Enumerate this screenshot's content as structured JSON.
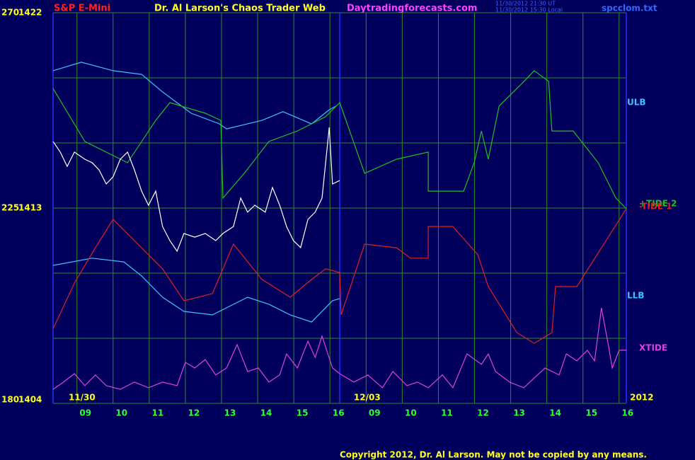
{
  "chart_data": {
    "type": "line",
    "header": {
      "symbol": "S&P E-Mini",
      "title": "Dr. Al Larson's Chaos Trader Web",
      "site": "Daytradingforecasts.com",
      "stamp_ut": "11/30/2012 21:30 UT",
      "stamp_local": "11/30/2012 15:30 Local",
      "file": "spcclom.txt"
    },
    "copyright": "Copyright 2012, Dr. Al Larson. May not be copied by any means.",
    "xlim": [
      -0.66,
      15.2
    ],
    "xticks": [
      {
        "value": 0,
        "label": "09"
      },
      {
        "value": 1,
        "label": "10"
      },
      {
        "value": 2,
        "label": "11"
      },
      {
        "value": 3,
        "label": "12"
      },
      {
        "value": 4,
        "label": "13"
      },
      {
        "value": 5,
        "label": "14"
      },
      {
        "value": 6,
        "label": "15"
      },
      {
        "value": 7,
        "label": "16"
      },
      {
        "value": 8,
        "label": "09"
      },
      {
        "value": 9,
        "label": "10"
      },
      {
        "value": 10,
        "label": "11"
      },
      {
        "value": 11,
        "label": "12"
      },
      {
        "value": 12,
        "label": "13"
      },
      {
        "value": 13,
        "label": "14"
      },
      {
        "value": 14,
        "label": "15"
      },
      {
        "value": 15,
        "label": "16"
      }
    ],
    "date_labels": [
      {
        "value": -0.23,
        "label": "11/30"
      },
      {
        "value": 7.66,
        "label": "12/03"
      },
      {
        "value": 15.3,
        "label": "2012"
      }
    ],
    "day_divider": 7.27,
    "ylim": [
      1404,
      1422
    ],
    "yticks": [
      1404,
      1413,
      1422
    ],
    "y2lim": [
      180,
      270
    ],
    "y2ticks": [
      180,
      225,
      270
    ],
    "ygrid": [
      1404,
      1407,
      1410,
      1413,
      1416,
      1419,
      1422
    ],
    "grid": true,
    "series": [
      {
        "name": "ULB",
        "color": "#40c0ff",
        "x": [
          -0.66,
          0.12,
          1.0,
          1.79,
          2.37,
          3.16,
          3.94,
          4.14,
          5.12,
          5.7,
          6.49,
          6.98,
          7.17
        ],
        "values": [
          1419.33,
          1419.72,
          1419.33,
          1419.16,
          1418.35,
          1417.37,
          1416.88,
          1416.65,
          1417.04,
          1417.44,
          1416.88,
          1417.53,
          1417.7
        ]
      },
      {
        "name": "LLB",
        "color": "#40c0ff",
        "x": [
          -0.66,
          0.42,
          1.3,
          1.79,
          2.37,
          2.96,
          3.75,
          4.72,
          5.31,
          5.9,
          6.49,
          7.07,
          7.27
        ],
        "values": [
          1410.36,
          1410.69,
          1410.52,
          1409.87,
          1408.89,
          1408.24,
          1408.08,
          1408.89,
          1408.57,
          1408.08,
          1407.75,
          1408.73,
          1408.83
        ]
      },
      {
        "name": "+TIDE 2",
        "color": "#20c020",
        "x": [
          -0.66,
          0.22,
          1.4,
          2.18,
          2.57,
          3.55,
          3.98,
          4.04,
          4.63,
          5.31,
          6.1,
          6.88,
          7.27,
          7.96,
          8.84,
          9.72,
          9.72,
          10.7,
          10.99,
          11.19,
          11.38,
          11.68,
          12.37,
          12.65,
          13.05,
          13.14,
          13.73,
          14.42,
          14.91,
          15.2
        ],
        "values": [
          1418.51,
          1416.07,
          1415.09,
          1417.04,
          1417.86,
          1417.37,
          1417.04,
          1413.46,
          1414.6,
          1416.07,
          1416.55,
          1417.21,
          1417.86,
          1414.6,
          1415.25,
          1415.58,
          1413.78,
          1413.78,
          1415.09,
          1416.55,
          1415.25,
          1417.7,
          1418.84,
          1419.33,
          1418.84,
          1416.55,
          1416.55,
          1415.09,
          1413.46,
          1412.97
        ]
      },
      {
        "name": "-TIDE 1",
        "color": "#e02020",
        "x": [
          -0.66,
          -0.07,
          0.51,
          1.0,
          1.59,
          2.37,
          2.96,
          3.75,
          4.33,
          5.12,
          5.9,
          6.49,
          6.88,
          7.27,
          7.31,
          7.96,
          8.84,
          9.23,
          9.72,
          9.72,
          10.4,
          11.09,
          11.38,
          12.17,
          12.65,
          13.14,
          13.24,
          13.83,
          14.51,
          15.2
        ],
        "values": [
          1407.43,
          1409.54,
          1411.17,
          1412.48,
          1411.5,
          1410.2,
          1408.73,
          1409.06,
          1411.34,
          1409.71,
          1408.89,
          1409.71,
          1410.2,
          1410.03,
          1408.08,
          1411.34,
          1411.17,
          1410.69,
          1410.69,
          1412.15,
          1412.15,
          1410.85,
          1409.38,
          1407.26,
          1406.77,
          1407.26,
          1409.38,
          1409.38,
          1411.17,
          1412.97
        ]
      },
      {
        "name": "XTIDE",
        "color": "#e040e0",
        "x": [
          -0.66,
          -0.37,
          -0.07,
          0.22,
          0.51,
          0.81,
          1.2,
          1.59,
          1.98,
          2.37,
          2.77,
          3.0,
          3.26,
          3.55,
          3.84,
          4.14,
          4.43,
          4.72,
          5.02,
          5.31,
          5.61,
          5.8,
          6.1,
          6.39,
          6.59,
          6.78,
          7.07,
          7.27,
          7.66,
          8.05,
          8.45,
          8.74,
          9.13,
          9.42,
          9.72,
          10.11,
          10.4,
          10.79,
          11.19,
          11.38,
          11.58,
          11.97,
          12.36,
          12.95,
          13.34,
          13.54,
          13.83,
          14.12,
          14.32,
          14.51,
          14.71,
          14.81,
          15.0,
          15.2
        ],
        "values": [
          1404.65,
          1404.98,
          1405.37,
          1404.82,
          1405.31,
          1404.82,
          1404.65,
          1404.98,
          1404.72,
          1404.98,
          1404.82,
          1405.89,
          1405.63,
          1406.02,
          1405.31,
          1405.63,
          1406.71,
          1405.47,
          1405.63,
          1404.98,
          1405.31,
          1406.28,
          1405.63,
          1406.87,
          1406.12,
          1407.1,
          1405.63,
          1405.37,
          1404.98,
          1405.31,
          1404.72,
          1405.47,
          1404.82,
          1404.98,
          1404.72,
          1405.31,
          1404.72,
          1406.28,
          1405.8,
          1406.28,
          1405.47,
          1404.98,
          1404.72,
          1405.63,
          1405.31,
          1406.28,
          1405.96,
          1406.45,
          1405.96,
          1408.4,
          1406.61,
          1405.63,
          1406.45,
          1406.45
        ]
      },
      {
        "color": "#ffffff",
        "x": [
          -0.66,
          -0.46,
          -0.27,
          -0.07,
          0.22,
          0.42,
          0.61,
          0.81,
          1.0,
          1.2,
          1.4,
          1.59,
          1.79,
          1.98,
          2.18,
          2.37,
          2.57,
          2.77,
          2.96,
          3.26,
          3.55,
          3.84,
          4.04,
          4.33,
          4.53,
          4.72,
          4.92,
          5.21,
          5.41,
          5.61,
          5.8,
          5.99,
          6.19,
          6.39,
          6.59,
          6.78,
          6.98,
          7.07,
          7.27
        ],
        "values": [
          1416.07,
          1415.58,
          1414.92,
          1415.58,
          1415.25,
          1415.09,
          1414.76,
          1414.11,
          1414.44,
          1415.25,
          1415.58,
          1414.76,
          1413.78,
          1413.13,
          1413.78,
          1412.15,
          1411.5,
          1411.01,
          1411.83,
          1411.66,
          1411.83,
          1411.5,
          1411.83,
          1412.15,
          1413.46,
          1412.81,
          1413.13,
          1412.81,
          1413.95,
          1413.13,
          1412.15,
          1411.5,
          1411.18,
          1412.48,
          1412.81,
          1413.46,
          1416.72,
          1414.11,
          1414.27
        ]
      }
    ]
  }
}
